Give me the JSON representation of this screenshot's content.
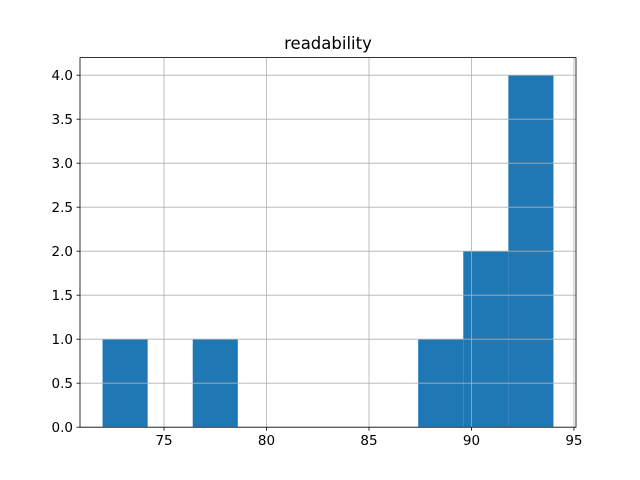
{
  "chart_data": {
    "type": "histogram",
    "title": "readability",
    "bins": [
      72,
      74.2,
      76.4,
      78.6,
      80.8,
      83,
      85.2,
      87.4,
      89.6,
      91.8,
      94
    ],
    "counts": [
      1,
      0,
      1,
      0,
      0,
      0,
      0,
      1,
      2,
      4
    ],
    "color": "#1f77b4",
    "xlim": [
      70.9,
      95.1
    ],
    "xticks": [
      75,
      80,
      85,
      90,
      95
    ],
    "ylim": [
      0,
      4.2
    ],
    "yticks": [
      {
        "value": 0,
        "label": "0.0"
      },
      0.5,
      {
        "value": 1,
        "label": "1.0"
      },
      1.5,
      {
        "value": 2,
        "label": "2.0"
      },
      2.5,
      {
        "value": 3,
        "label": "3.0"
      },
      3.5,
      {
        "value": 4,
        "label": "4.0"
      }
    ],
    "grid": true
  }
}
